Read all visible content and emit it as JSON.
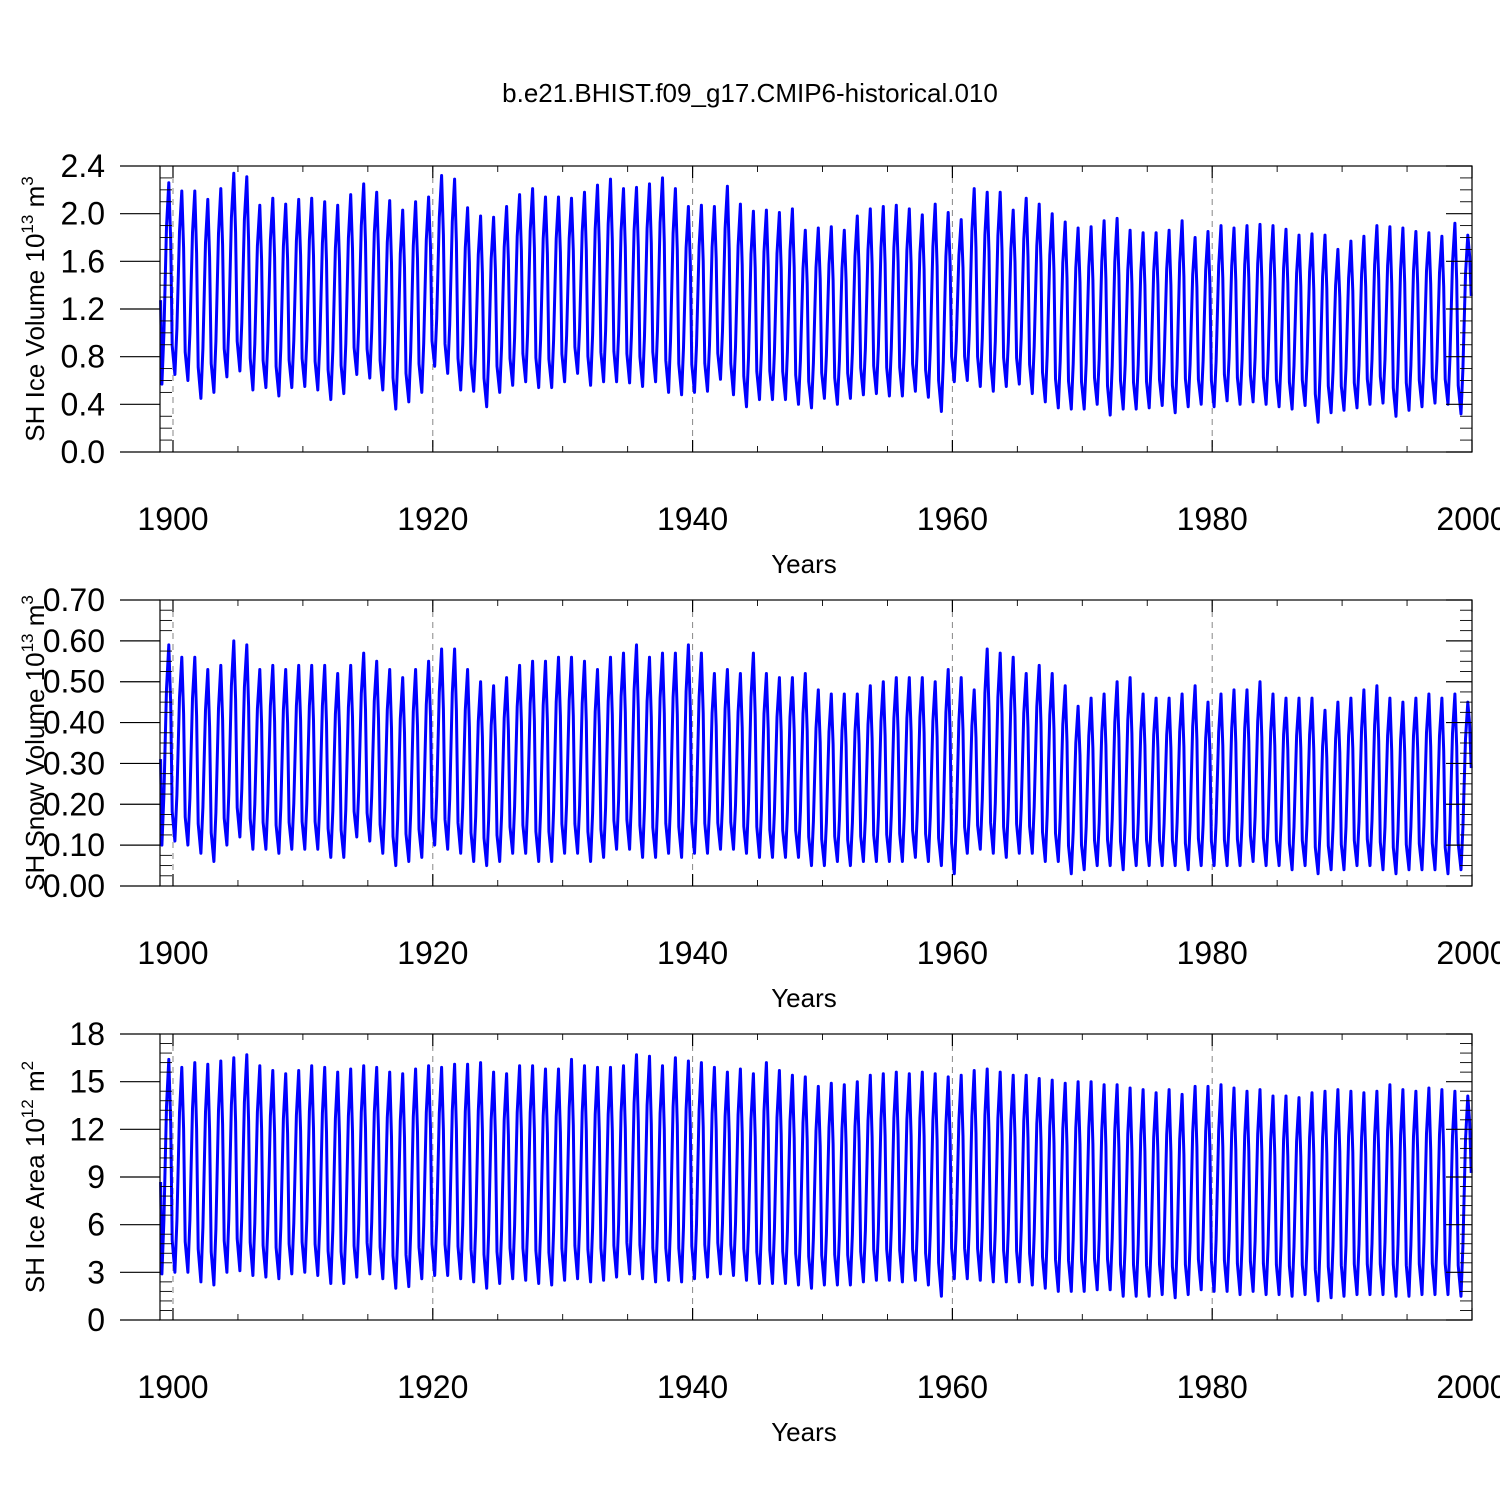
{
  "title": "b.e21.BHIST.f09_g17.CMIP6-historical.010",
  "line_color": "#0000ff",
  "grid_color": "#888888",
  "chart_data": [
    {
      "type": "line",
      "title": "b.e21.BHIST.f09_g17.CMIP6-historical.010",
      "xlabel": "Years",
      "ylabel": {
        "main": "SH Ice Volume 10",
        "exp": "13",
        "unit": " m",
        "unit_exp": "3"
      },
      "xlim": [
        1899,
        2000
      ],
      "ylim": [
        0,
        2.4
      ],
      "xticks": [
        1900,
        1920,
        1940,
        1960,
        1980,
        2000
      ],
      "xtick_labels": [
        "1900",
        "1920",
        "1940",
        "1960",
        "1980",
        "2000"
      ],
      "yticks": [
        0,
        0.4,
        0.8,
        1.2,
        1.6,
        2.0,
        2.4
      ],
      "ytick_labels": [
        "0.0",
        "0.4",
        "0.8",
        "1.2",
        "1.6",
        "2.0",
        "2.4"
      ],
      "grid": "vertical dashed at major x ticks",
      "series": [
        {
          "name": "SH Ice Volume",
          "start_year": 1899,
          "annual_max": [
            2.26,
            2.19,
            2.19,
            2.12,
            2.21,
            2.34,
            2.31,
            2.07,
            2.13,
            2.08,
            2.12,
            2.13,
            2.1,
            2.07,
            2.16,
            2.25,
            2.18,
            2.11,
            2.03,
            2.1,
            2.14,
            2.32,
            2.29,
            2.05,
            1.98,
            1.97,
            2.06,
            2.16,
            2.21,
            2.14,
            2.14,
            2.13,
            2.18,
            2.24,
            2.29,
            2.21,
            2.22,
            2.25,
            2.3,
            2.21,
            2.06,
            2.07,
            2.06,
            2.23,
            2.08,
            2.02,
            2.03,
            2.01,
            2.04,
            1.86,
            1.88,
            1.89,
            1.86,
            1.98,
            2.04,
            2.06,
            2.07,
            2.04,
            1.99,
            2.08,
            2.01,
            1.95,
            2.21,
            2.18,
            2.18,
            2.03,
            2.13,
            2.08,
            2.0,
            1.93,
            1.88,
            1.89,
            1.94,
            1.96,
            1.86,
            1.84,
            1.84,
            1.86,
            1.94,
            1.8,
            1.85,
            1.9,
            1.88,
            1.9,
            1.91,
            1.9,
            1.87,
            1.82,
            1.83,
            1.82,
            1.7,
            1.77,
            1.81,
            1.9,
            1.89,
            1.88,
            1.85,
            1.84,
            1.81,
            1.92,
            1.82
          ],
          "annual_min": [
            0.57,
            0.65,
            0.6,
            0.45,
            0.5,
            0.63,
            0.68,
            0.52,
            0.54,
            0.47,
            0.54,
            0.55,
            0.52,
            0.44,
            0.49,
            0.65,
            0.62,
            0.52,
            0.36,
            0.42,
            0.5,
            0.72,
            0.66,
            0.52,
            0.51,
            0.38,
            0.5,
            0.56,
            0.59,
            0.54,
            0.54,
            0.59,
            0.66,
            0.56,
            0.59,
            0.59,
            0.58,
            0.55,
            0.59,
            0.5,
            0.48,
            0.5,
            0.51,
            0.61,
            0.48,
            0.38,
            0.44,
            0.44,
            0.44,
            0.4,
            0.37,
            0.45,
            0.4,
            0.45,
            0.48,
            0.49,
            0.47,
            0.47,
            0.51,
            0.46,
            0.34,
            0.59,
            0.6,
            0.55,
            0.51,
            0.55,
            0.57,
            0.49,
            0.42,
            0.37,
            0.36,
            0.36,
            0.4,
            0.31,
            0.36,
            0.36,
            0.37,
            0.39,
            0.33,
            0.38,
            0.4,
            0.38,
            0.43,
            0.4,
            0.42,
            0.4,
            0.38,
            0.36,
            0.39,
            0.25,
            0.33,
            0.35,
            0.37,
            0.4,
            0.41,
            0.3,
            0.35,
            0.38,
            0.41,
            0.4,
            0.32
          ],
          "end_value": 1.22
        }
      ]
    },
    {
      "type": "line",
      "xlabel": "Years",
      "ylabel": {
        "main": "SH Snow Volume 10",
        "exp": "13",
        "unit": " m",
        "unit_exp": "3"
      },
      "xlim": [
        1899,
        2000
      ],
      "ylim": [
        0,
        0.7
      ],
      "xticks": [
        1900,
        1920,
        1940,
        1960,
        1980,
        2000
      ],
      "xtick_labels": [
        "1900",
        "1920",
        "1940",
        "1960",
        "1980",
        "2000"
      ],
      "yticks": [
        0,
        0.1,
        0.2,
        0.3,
        0.4,
        0.5,
        0.6,
        0.7
      ],
      "ytick_labels": [
        "0.00",
        "0.10",
        "0.20",
        "0.30",
        "0.40",
        "0.50",
        "0.60",
        "0.70"
      ],
      "grid": "vertical dashed at major x ticks",
      "series": [
        {
          "name": "SH Snow Volume",
          "start_year": 1899,
          "annual_max": [
            0.59,
            0.56,
            0.56,
            0.53,
            0.54,
            0.6,
            0.59,
            0.53,
            0.54,
            0.53,
            0.54,
            0.54,
            0.54,
            0.52,
            0.54,
            0.57,
            0.55,
            0.53,
            0.51,
            0.53,
            0.55,
            0.58,
            0.58,
            0.53,
            0.5,
            0.49,
            0.51,
            0.54,
            0.55,
            0.55,
            0.56,
            0.56,
            0.55,
            0.53,
            0.56,
            0.57,
            0.59,
            0.56,
            0.57,
            0.57,
            0.59,
            0.57,
            0.52,
            0.53,
            0.52,
            0.57,
            0.52,
            0.51,
            0.51,
            0.52,
            0.48,
            0.47,
            0.47,
            0.47,
            0.49,
            0.5,
            0.51,
            0.51,
            0.51,
            0.5,
            0.53,
            0.51,
            0.48,
            0.58,
            0.57,
            0.56,
            0.52,
            0.54,
            0.52,
            0.49,
            0.44,
            0.46,
            0.47,
            0.5,
            0.51,
            0.47,
            0.46,
            0.46,
            0.47,
            0.49,
            0.45,
            0.47,
            0.48,
            0.48,
            0.5,
            0.47,
            0.46,
            0.46,
            0.46,
            0.43,
            0.45,
            0.46,
            0.48,
            0.49,
            0.46,
            0.45,
            0.46,
            0.47,
            0.46,
            0.47,
            0.45
          ],
          "annual_min": [
            0.1,
            0.11,
            0.1,
            0.08,
            0.06,
            0.1,
            0.12,
            0.09,
            0.09,
            0.08,
            0.09,
            0.09,
            0.09,
            0.07,
            0.07,
            0.12,
            0.11,
            0.08,
            0.05,
            0.06,
            0.07,
            0.1,
            0.09,
            0.08,
            0.06,
            0.05,
            0.06,
            0.08,
            0.08,
            0.06,
            0.06,
            0.08,
            0.08,
            0.06,
            0.07,
            0.09,
            0.09,
            0.07,
            0.07,
            0.08,
            0.07,
            0.08,
            0.08,
            0.09,
            0.09,
            0.08,
            0.07,
            0.07,
            0.07,
            0.07,
            0.05,
            0.05,
            0.06,
            0.05,
            0.06,
            0.06,
            0.06,
            0.06,
            0.07,
            0.06,
            0.05,
            0.03,
            0.08,
            0.09,
            0.08,
            0.07,
            0.08,
            0.08,
            0.06,
            0.06,
            0.03,
            0.04,
            0.05,
            0.05,
            0.04,
            0.05,
            0.05,
            0.05,
            0.05,
            0.04,
            0.05,
            0.05,
            0.05,
            0.05,
            0.06,
            0.05,
            0.05,
            0.04,
            0.05,
            0.03,
            0.04,
            0.04,
            0.05,
            0.05,
            0.04,
            0.03,
            0.04,
            0.04,
            0.04,
            0.03,
            0.04
          ],
          "end_value": 0.26
        }
      ]
    },
    {
      "type": "line",
      "xlabel": "Years",
      "ylabel": {
        "main": "SH Ice Area 10",
        "exp": "12",
        "unit": " m",
        "unit_exp": "2"
      },
      "xlim": [
        1899,
        2000
      ],
      "ylim": [
        0,
        18
      ],
      "xticks": [
        1900,
        1920,
        1940,
        1960,
        1980,
        2000
      ],
      "xtick_labels": [
        "1900",
        "1920",
        "1940",
        "1960",
        "1980",
        "2000"
      ],
      "yticks": [
        0,
        3,
        6,
        9,
        12,
        15,
        18
      ],
      "ytick_labels": [
        "0",
        "3",
        "6",
        "9",
        "12",
        "15",
        "18"
      ],
      "grid": "vertical dashed at major x ticks",
      "series": [
        {
          "name": "SH Ice Area",
          "start_year": 1899,
          "annual_max": [
            16.4,
            15.9,
            16.2,
            16.1,
            16.3,
            16.5,
            16.7,
            16.0,
            15.7,
            15.5,
            15.7,
            16.0,
            15.9,
            15.6,
            15.8,
            16.0,
            15.9,
            15.6,
            15.5,
            15.8,
            16.0,
            15.9,
            16.1,
            16.1,
            16.2,
            15.6,
            15.5,
            16.0,
            16.0,
            15.8,
            15.8,
            16.4,
            16.0,
            15.9,
            15.9,
            16.0,
            16.7,
            16.6,
            16.0,
            16.5,
            16.3,
            16.2,
            15.9,
            15.6,
            15.8,
            15.5,
            16.2,
            15.7,
            15.4,
            15.3,
            14.7,
            14.9,
            14.8,
            15.0,
            15.4,
            15.5,
            15.6,
            15.5,
            15.6,
            15.5,
            15.3,
            15.4,
            15.7,
            15.8,
            15.6,
            15.4,
            15.4,
            15.2,
            15.1,
            14.9,
            15.0,
            15.0,
            14.8,
            14.8,
            14.6,
            14.5,
            14.3,
            14.5,
            14.2,
            14.7,
            14.7,
            14.8,
            14.6,
            14.4,
            14.5,
            14.1,
            14.1,
            14.0,
            14.3,
            14.4,
            14.5,
            14.4,
            14.3,
            14.4,
            14.8,
            14.5,
            14.4,
            14.6,
            14.5,
            14.4,
            14.1
          ],
          "annual_min": [
            2.9,
            3.0,
            3.0,
            2.4,
            2.2,
            3.0,
            3.1,
            2.8,
            2.7,
            2.6,
            2.9,
            3.0,
            2.8,
            2.3,
            2.3,
            2.7,
            2.9,
            2.6,
            2.0,
            2.1,
            2.6,
            2.8,
            2.8,
            2.6,
            2.4,
            2.0,
            2.3,
            2.6,
            2.5,
            2.3,
            2.2,
            2.5,
            2.6,
            2.4,
            2.5,
            2.7,
            2.9,
            2.6,
            2.4,
            2.5,
            2.4,
            2.6,
            2.7,
            2.9,
            2.8,
            2.5,
            2.3,
            2.3,
            2.3,
            2.2,
            2.0,
            2.2,
            2.2,
            2.2,
            2.4,
            2.5,
            2.5,
            2.4,
            2.5,
            2.2,
            1.5,
            2.6,
            2.6,
            2.5,
            2.4,
            2.4,
            2.4,
            2.2,
            2.0,
            1.8,
            1.8,
            1.8,
            1.9,
            1.9,
            1.5,
            1.5,
            1.5,
            1.6,
            1.4,
            1.6,
            1.9,
            1.8,
            1.8,
            1.6,
            1.8,
            1.6,
            1.6,
            1.5,
            1.6,
            1.2,
            1.4,
            1.5,
            1.6,
            1.6,
            1.6,
            1.5,
            1.5,
            1.6,
            1.6,
            1.6,
            1.5
          ],
          "end_value": 8.4
        }
      ]
    }
  ]
}
